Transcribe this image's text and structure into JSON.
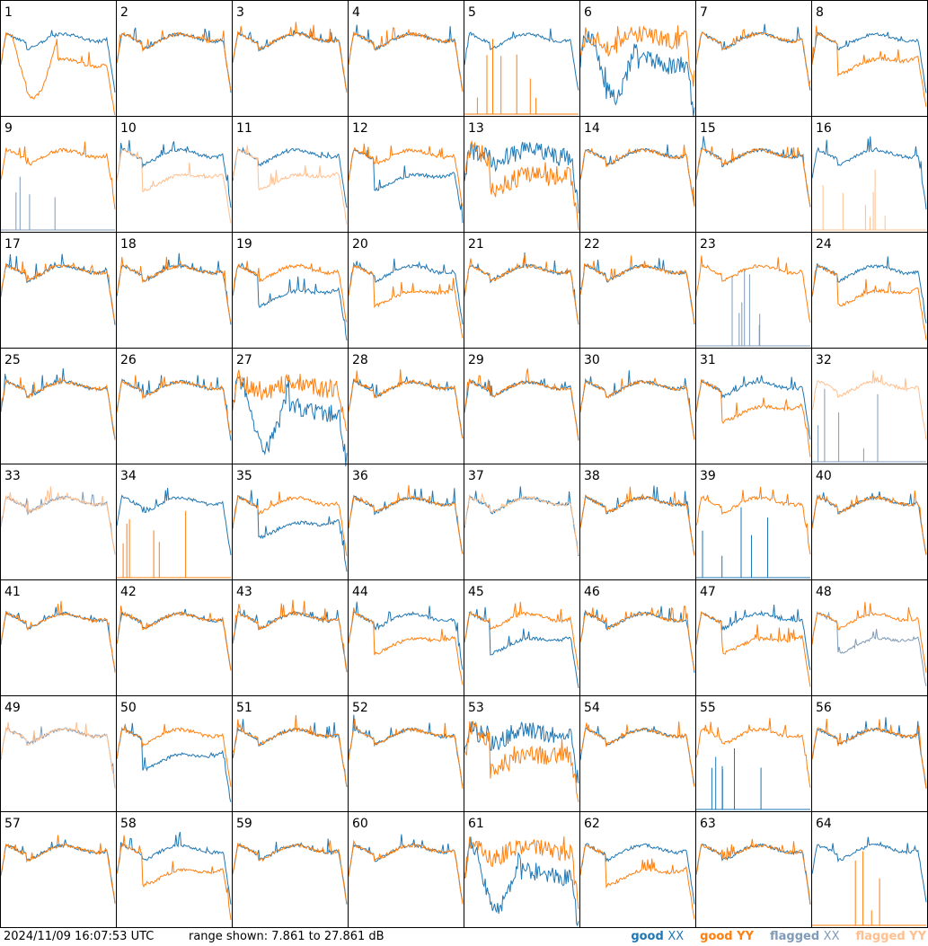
{
  "footer": {
    "timestamp": "2024/11/09 16:07:53 UTC",
    "range_text": "range shown: 7.861 to 27.861 dB"
  },
  "legend": [
    {
      "prefix": "good",
      "pol": "XX",
      "color": "#1f77b4"
    },
    {
      "prefix": "good",
      "pol": "YY",
      "color": "#ff7f0e"
    },
    {
      "prefix": "flagged",
      "pol": "XX",
      "color": "#7f9bb8"
    },
    {
      "prefix": "flagged",
      "pol": "YY",
      "color": "#ffbf8e"
    }
  ],
  "colors": {
    "good_xx": "#1f77b4",
    "good_yy": "#ff7f0e",
    "flagged_xx": "#7f9bb8",
    "flagged_yy": "#ffbf8e",
    "frame": "#000000"
  },
  "chart_data": {
    "type": "line",
    "grid": "8x8 small multiples",
    "ylim": [
      7.861,
      27.861
    ],
    "yunit": "dB",
    "panel_labels": [
      "1",
      "2",
      "3",
      "4",
      "5",
      "6",
      "7",
      "8",
      "9",
      "10",
      "11",
      "12",
      "13",
      "14",
      "15",
      "16",
      "17",
      "18",
      "19",
      "20",
      "21",
      "22",
      "23",
      "24",
      "25",
      "26",
      "27",
      "28",
      "29",
      "30",
      "31",
      "32",
      "33",
      "34",
      "35",
      "36",
      "37",
      "38",
      "39",
      "40",
      "41",
      "42",
      "43",
      "44",
      "45",
      "46",
      "47",
      "48",
      "49",
      "50",
      "51",
      "52",
      "53",
      "54",
      "55",
      "56",
      "57",
      "58",
      "59",
      "60",
      "61",
      "62",
      "63",
      "64"
    ],
    "panels": [
      {
        "xx": "normal",
        "yy": "deep"
      },
      {
        "xx": "normal",
        "yy": "normal"
      },
      {
        "xx": "normal",
        "yy": "normal"
      },
      {
        "xx": "normal",
        "yy": "normal"
      },
      {
        "xx": "normal",
        "yy": "dead"
      },
      {
        "xx": "deep",
        "yy": "normal",
        "noisy": true
      },
      {
        "xx": "normal",
        "yy": "normal"
      },
      {
        "xx": "normal",
        "yy": "low"
      },
      {
        "xx": "dead-flagged",
        "yy": "normal"
      },
      {
        "xx": "normal",
        "yy": "low-flagged"
      },
      {
        "xx": "normal",
        "yy": "low-flagged"
      },
      {
        "xx": "low",
        "yy": "normal"
      },
      {
        "xx": "normal",
        "yy": "low",
        "noisy": true
      },
      {
        "xx": "normal",
        "yy": "normal"
      },
      {
        "xx": "normal",
        "yy": "normal"
      },
      {
        "xx": "normal",
        "yy": "dead-flagged"
      },
      {
        "xx": "normal",
        "yy": "normal"
      },
      {
        "xx": "normal",
        "yy": "normal"
      },
      {
        "xx": "low",
        "yy": "normal"
      },
      {
        "xx": "normal",
        "yy": "low"
      },
      {
        "xx": "normal",
        "yy": "normal"
      },
      {
        "xx": "normal",
        "yy": "normal"
      },
      {
        "xx": "dead-flagged",
        "yy": "normal"
      },
      {
        "xx": "normal",
        "yy": "low"
      },
      {
        "xx": "normal",
        "yy": "normal"
      },
      {
        "xx": "normal",
        "yy": "normal"
      },
      {
        "xx": "deep",
        "yy": "normal",
        "noisy": true
      },
      {
        "xx": "normal",
        "yy": "normal"
      },
      {
        "xx": "normal",
        "yy": "normal"
      },
      {
        "xx": "normal",
        "yy": "normal"
      },
      {
        "xx": "normal",
        "yy": "low"
      },
      {
        "xx": "dead-flagged",
        "yy": "normal-flagged"
      },
      {
        "xx": "normal-flagged",
        "yy": "normal-flagged"
      },
      {
        "xx": "normal",
        "yy": "dead"
      },
      {
        "xx": "low",
        "yy": "normal"
      },
      {
        "xx": "normal",
        "yy": "normal"
      },
      {
        "xx": "normal",
        "yy": "normal-flagged"
      },
      {
        "xx": "normal",
        "yy": "normal"
      },
      {
        "xx": "dead",
        "yy": "normal"
      },
      {
        "xx": "normal",
        "yy": "normal"
      },
      {
        "xx": "normal",
        "yy": "normal"
      },
      {
        "xx": "normal",
        "yy": "normal"
      },
      {
        "xx": "normal",
        "yy": "normal"
      },
      {
        "xx": "normal",
        "yy": "low"
      },
      {
        "xx": "low",
        "yy": "normal"
      },
      {
        "xx": "normal",
        "yy": "normal"
      },
      {
        "xx": "normal",
        "yy": "low"
      },
      {
        "xx": "low-flagged",
        "yy": "normal"
      },
      {
        "xx": "normal-flagged",
        "yy": "normal-flagged"
      },
      {
        "xx": "low",
        "yy": "normal"
      },
      {
        "xx": "normal",
        "yy": "normal"
      },
      {
        "xx": "normal",
        "yy": "normal"
      },
      {
        "xx": "normal",
        "yy": "low",
        "noisy": true
      },
      {
        "xx": "normal",
        "yy": "normal"
      },
      {
        "xx": "dead",
        "yy": "normal"
      },
      {
        "xx": "normal",
        "yy": "normal"
      },
      {
        "xx": "normal",
        "yy": "normal"
      },
      {
        "xx": "normal",
        "yy": "low"
      },
      {
        "xx": "normal",
        "yy": "normal"
      },
      {
        "xx": "normal",
        "yy": "normal"
      },
      {
        "xx": "deep",
        "yy": "normal",
        "noisy": true
      },
      {
        "xx": "normal",
        "yy": "low"
      },
      {
        "xx": "normal",
        "yy": "normal"
      },
      {
        "xx": "normal",
        "yy": "dead"
      }
    ]
  }
}
